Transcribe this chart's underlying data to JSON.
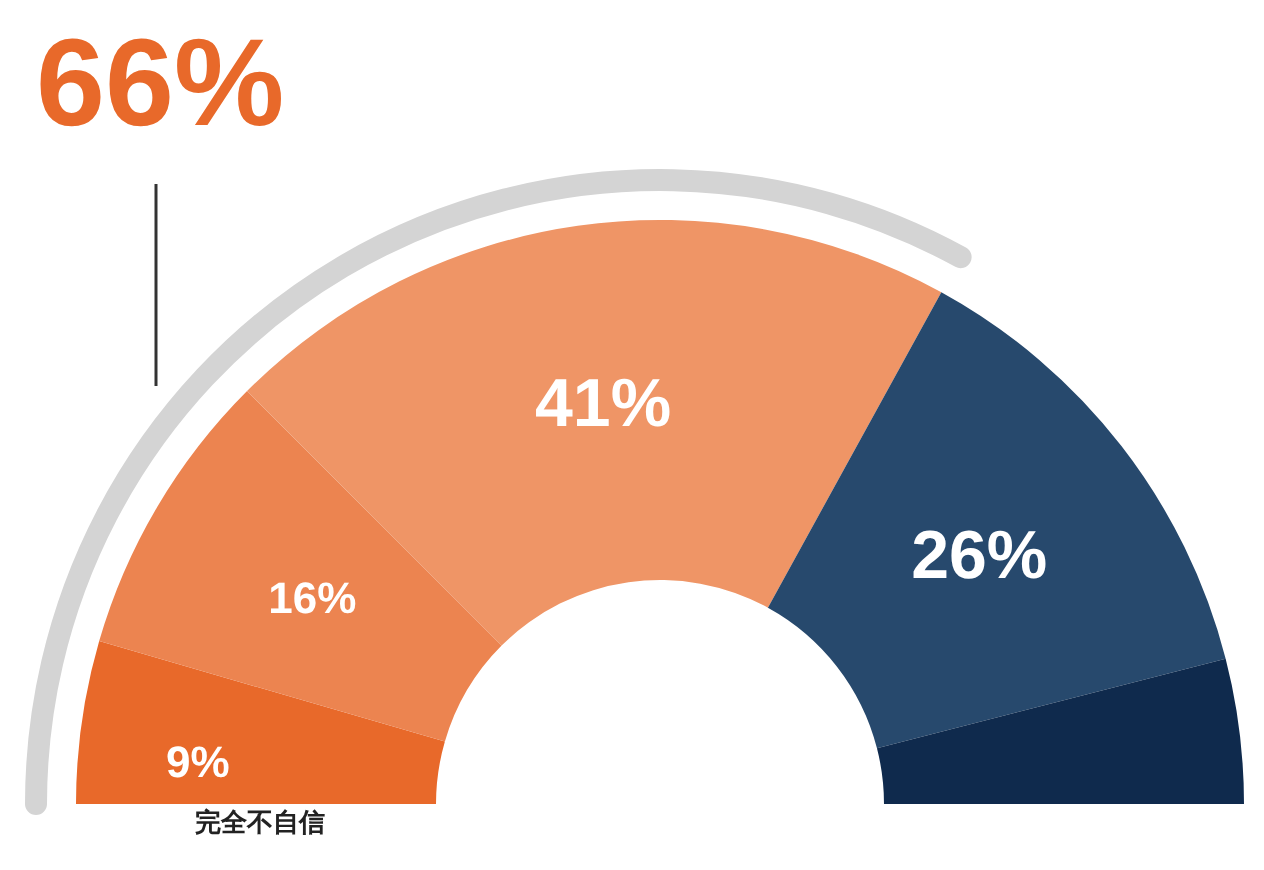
{
  "chart_data": {
    "type": "donut",
    "categories": [
      "完全不自信",
      null,
      null,
      null,
      null
    ],
    "values": [
      9,
      16,
      41,
      26,
      8
    ],
    "colors": [
      "#e8692a",
      "#ec8450",
      "#ef9566",
      "#27496d",
      "#0f2a4d"
    ],
    "value_labels": [
      "9%",
      "16%",
      "41%",
      "26%",
      null
    ],
    "annotations": [
      "66%"
    ]
  }
}
